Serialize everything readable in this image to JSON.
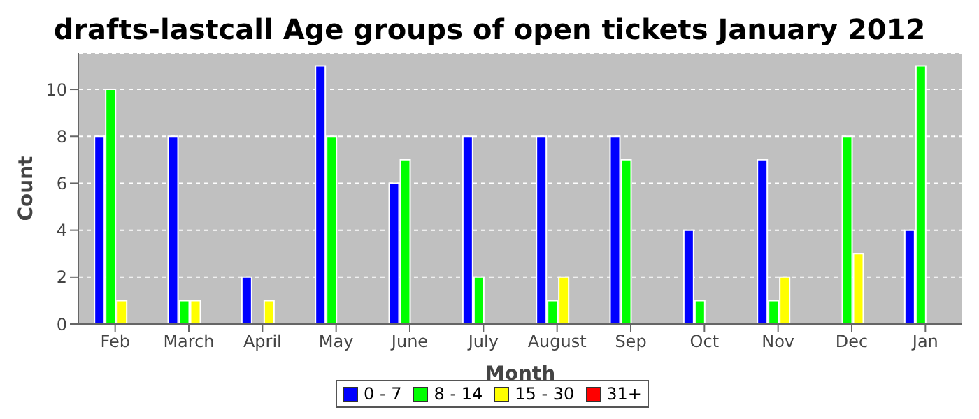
{
  "chart_data": {
    "type": "bar",
    "title": "drafts-lastcall Age groups of open tickets January 2012",
    "xlabel": "Month",
    "ylabel": "Count",
    "categories": [
      "Feb",
      "March",
      "April",
      "May",
      "June",
      "July",
      "August",
      "Sep",
      "Oct",
      "Nov",
      "Dec",
      "Jan"
    ],
    "series": [
      {
        "name": "0 - 7",
        "color": "#0000ff",
        "values": [
          8,
          8,
          2,
          11,
          6,
          8,
          8,
          8,
          4,
          7,
          0,
          4
        ]
      },
      {
        "name": "8 - 14",
        "color": "#00ff00",
        "values": [
          10,
          1,
          0,
          8,
          7,
          2,
          1,
          7,
          1,
          1,
          8,
          11
        ]
      },
      {
        "name": "15 - 30",
        "color": "#ffff00",
        "values": [
          1,
          1,
          1,
          0,
          0,
          0,
          2,
          0,
          0,
          2,
          3,
          0
        ]
      },
      {
        "name": "31+",
        "color": "#ff0000",
        "values": [
          0,
          0,
          0,
          0,
          0,
          0,
          0,
          0,
          0,
          0,
          0,
          0
        ]
      }
    ],
    "ylim": [
      0,
      11.55
    ],
    "yticks": [
      0,
      2,
      4,
      6,
      8,
      10
    ],
    "grid": "y",
    "legend": "bottom"
  }
}
